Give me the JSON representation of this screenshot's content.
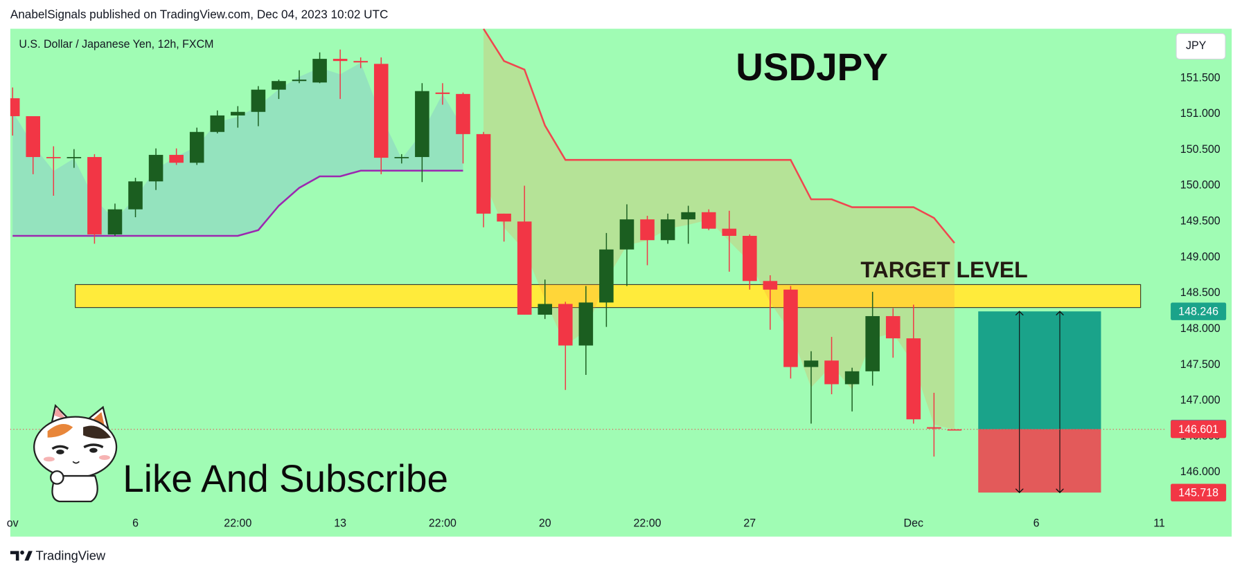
{
  "header": "AnabelSignals published on TradingView.com, Dec 04, 2023 10:02 UTC",
  "caption": "Like And Subscribe",
  "brand": "TradingView",
  "chart_data": {
    "type": "candlestick",
    "title": "USDJPY",
    "symbol": "U.S. Dollar / Japanese Yen, 12h, FXCM",
    "currency": "JPY",
    "background": "#a0fcb4",
    "up_color": "#1b5e20",
    "down_color": "#f23645",
    "grid": false,
    "categories": [
      "ov",
      null,
      null,
      null,
      null,
      null,
      "6",
      null,
      null,
      null,
      null,
      "22:00",
      null,
      null,
      null,
      null,
      "13",
      null,
      null,
      null,
      null,
      "22:00",
      null,
      null,
      null,
      null,
      "20",
      null,
      null,
      null,
      null,
      "22:00",
      null,
      null,
      null,
      null,
      "27",
      null,
      null,
      null,
      null,
      null,
      null,
      null,
      "Dec",
      null,
      null,
      null,
      null,
      null,
      "6",
      null,
      null,
      null,
      null,
      null,
      "11"
    ],
    "open": [
      151.22,
      150.97,
      150.4,
      150.4,
      150.4,
      149.32,
      149.67,
      150.06,
      150.43,
      150.32,
      150.75,
      150.98,
      151.03,
      151.34,
      151.46,
      151.44,
      151.77,
      151.74,
      151.7,
      150.39,
      150.4,
      151.3,
      151.28,
      150.72,
      149.61,
      149.5,
      148.2,
      148.35,
      147.77,
      148.37,
      149.11,
      149.53,
      149.24,
      149.53,
      149.63,
      149.4,
      149.3,
      148.67,
      148.55,
      147.47,
      147.56,
      147.23,
      147.41,
      148.18,
      147.87,
      146.63,
      146.6,
      null,
      null,
      null,
      null,
      null,
      null,
      null,
      null,
      null,
      null
    ],
    "high": [
      151.37,
      150.97,
      150.55,
      150.51,
      150.44,
      149.75,
      150.11,
      150.52,
      150.52,
      150.81,
      151.05,
      151.11,
      151.39,
      151.48,
      151.61,
      151.86,
      151.9,
      151.79,
      151.79,
      150.44,
      151.43,
      151.43,
      151.3,
      150.75,
      149.61,
      150.0,
      148.69,
      148.38,
      148.6,
      149.34,
      149.74,
      149.58,
      149.61,
      149.72,
      149.67,
      149.65,
      149.32,
      148.75,
      148.6,
      147.69,
      147.89,
      147.46,
      148.52,
      148.29,
      148.34,
      147.11,
      146.6,
      null,
      null,
      null,
      null,
      null,
      null,
      null,
      null,
      null,
      null
    ],
    "low": [
      150.7,
      150.16,
      149.86,
      150.25,
      149.19,
      149.3,
      149.56,
      149.94,
      150.29,
      150.29,
      150.73,
      150.81,
      150.83,
      151.21,
      151.43,
      151.43,
      151.21,
      151.64,
      150.16,
      150.31,
      150.05,
      151.13,
      150.31,
      149.42,
      149.22,
      148.2,
      148.14,
      147.15,
      147.36,
      148.03,
      148.6,
      148.89,
      149.19,
      149.19,
      149.38,
      148.8,
      148.55,
      147.99,
      147.31,
      146.68,
      147.09,
      146.85,
      147.21,
      147.6,
      146.68,
      146.22,
      146.59,
      null,
      null,
      null,
      null,
      null,
      null,
      null,
      null,
      null,
      null
    ],
    "close": [
      150.97,
      150.4,
      150.39,
      150.4,
      149.32,
      149.67,
      150.06,
      150.43,
      150.32,
      150.75,
      150.98,
      151.03,
      151.34,
      151.46,
      151.48,
      151.77,
      151.74,
      151.72,
      150.39,
      150.4,
      151.32,
      151.28,
      150.72,
      149.61,
      149.5,
      148.2,
      148.35,
      147.77,
      148.37,
      149.11,
      149.53,
      149.24,
      149.53,
      149.63,
      149.4,
      149.3,
      148.67,
      148.55,
      147.47,
      147.56,
      147.23,
      147.41,
      148.18,
      147.87,
      146.74,
      146.61,
      146.59,
      null,
      null,
      null,
      null,
      null,
      null,
      null,
      null,
      null,
      null
    ],
    "supertrend_up": {
      "color": "#9c27b0",
      "values": [
        149.3,
        149.3,
        149.3,
        149.3,
        149.3,
        149.3,
        149.3,
        149.3,
        149.3,
        149.3,
        149.3,
        149.3,
        149.38,
        149.72,
        149.97,
        150.13,
        150.13,
        150.21,
        150.21,
        150.21,
        150.21,
        150.21,
        150.21,
        null,
        null,
        null,
        null,
        null,
        null,
        null,
        null,
        null,
        null,
        null,
        null,
        null,
        null,
        null,
        null,
        null,
        null,
        null,
        null,
        null,
        null,
        null,
        null,
        null,
        null,
        null,
        null,
        null,
        null,
        null,
        null,
        null,
        null
      ]
    },
    "supertrend_down": {
      "color": "#f0464f",
      "values": [
        null,
        null,
        null,
        null,
        null,
        null,
        null,
        null,
        null,
        null,
        null,
        null,
        null,
        null,
        null,
        null,
        null,
        null,
        null,
        null,
        null,
        null,
        null,
        152.19,
        151.74,
        151.62,
        150.84,
        150.36,
        150.36,
        150.36,
        150.36,
        150.36,
        150.36,
        150.36,
        150.36,
        150.36,
        150.36,
        150.36,
        150.36,
        149.81,
        149.81,
        149.7,
        149.7,
        149.7,
        149.7,
        149.55,
        149.2,
        null,
        null,
        null,
        null,
        null,
        null,
        null,
        null,
        null,
        null
      ]
    },
    "ylim": [
      145.46,
      152.19
    ],
    "yticks": [
      {
        "value": 146.0,
        "label": "146.000"
      },
      {
        "value": 146.5,
        "label": "146.500"
      },
      {
        "value": 147.0,
        "label": "147.000"
      },
      {
        "value": 147.5,
        "label": "147.500"
      },
      {
        "value": 148.0,
        "label": "148.000"
      },
      {
        "value": 148.5,
        "label": "148.500"
      },
      {
        "value": 149.0,
        "label": "149.000"
      },
      {
        "value": 149.5,
        "label": "149.500"
      },
      {
        "value": 150.0,
        "label": "150.000"
      },
      {
        "value": 150.5,
        "label": "150.500"
      },
      {
        "value": 151.0,
        "label": "151.000"
      },
      {
        "value": 151.5,
        "label": "151.500"
      }
    ],
    "target_zone": {
      "label": "TARGET LEVEL",
      "low": 148.3,
      "high": 148.62,
      "color": "#ffeb3b"
    },
    "position": {
      "target": 148.246,
      "entry": 146.601,
      "stop": 145.718,
      "profit_color": "#1aa38a",
      "loss_color": "#e35a5a"
    },
    "marker_price": 146.612
  }
}
